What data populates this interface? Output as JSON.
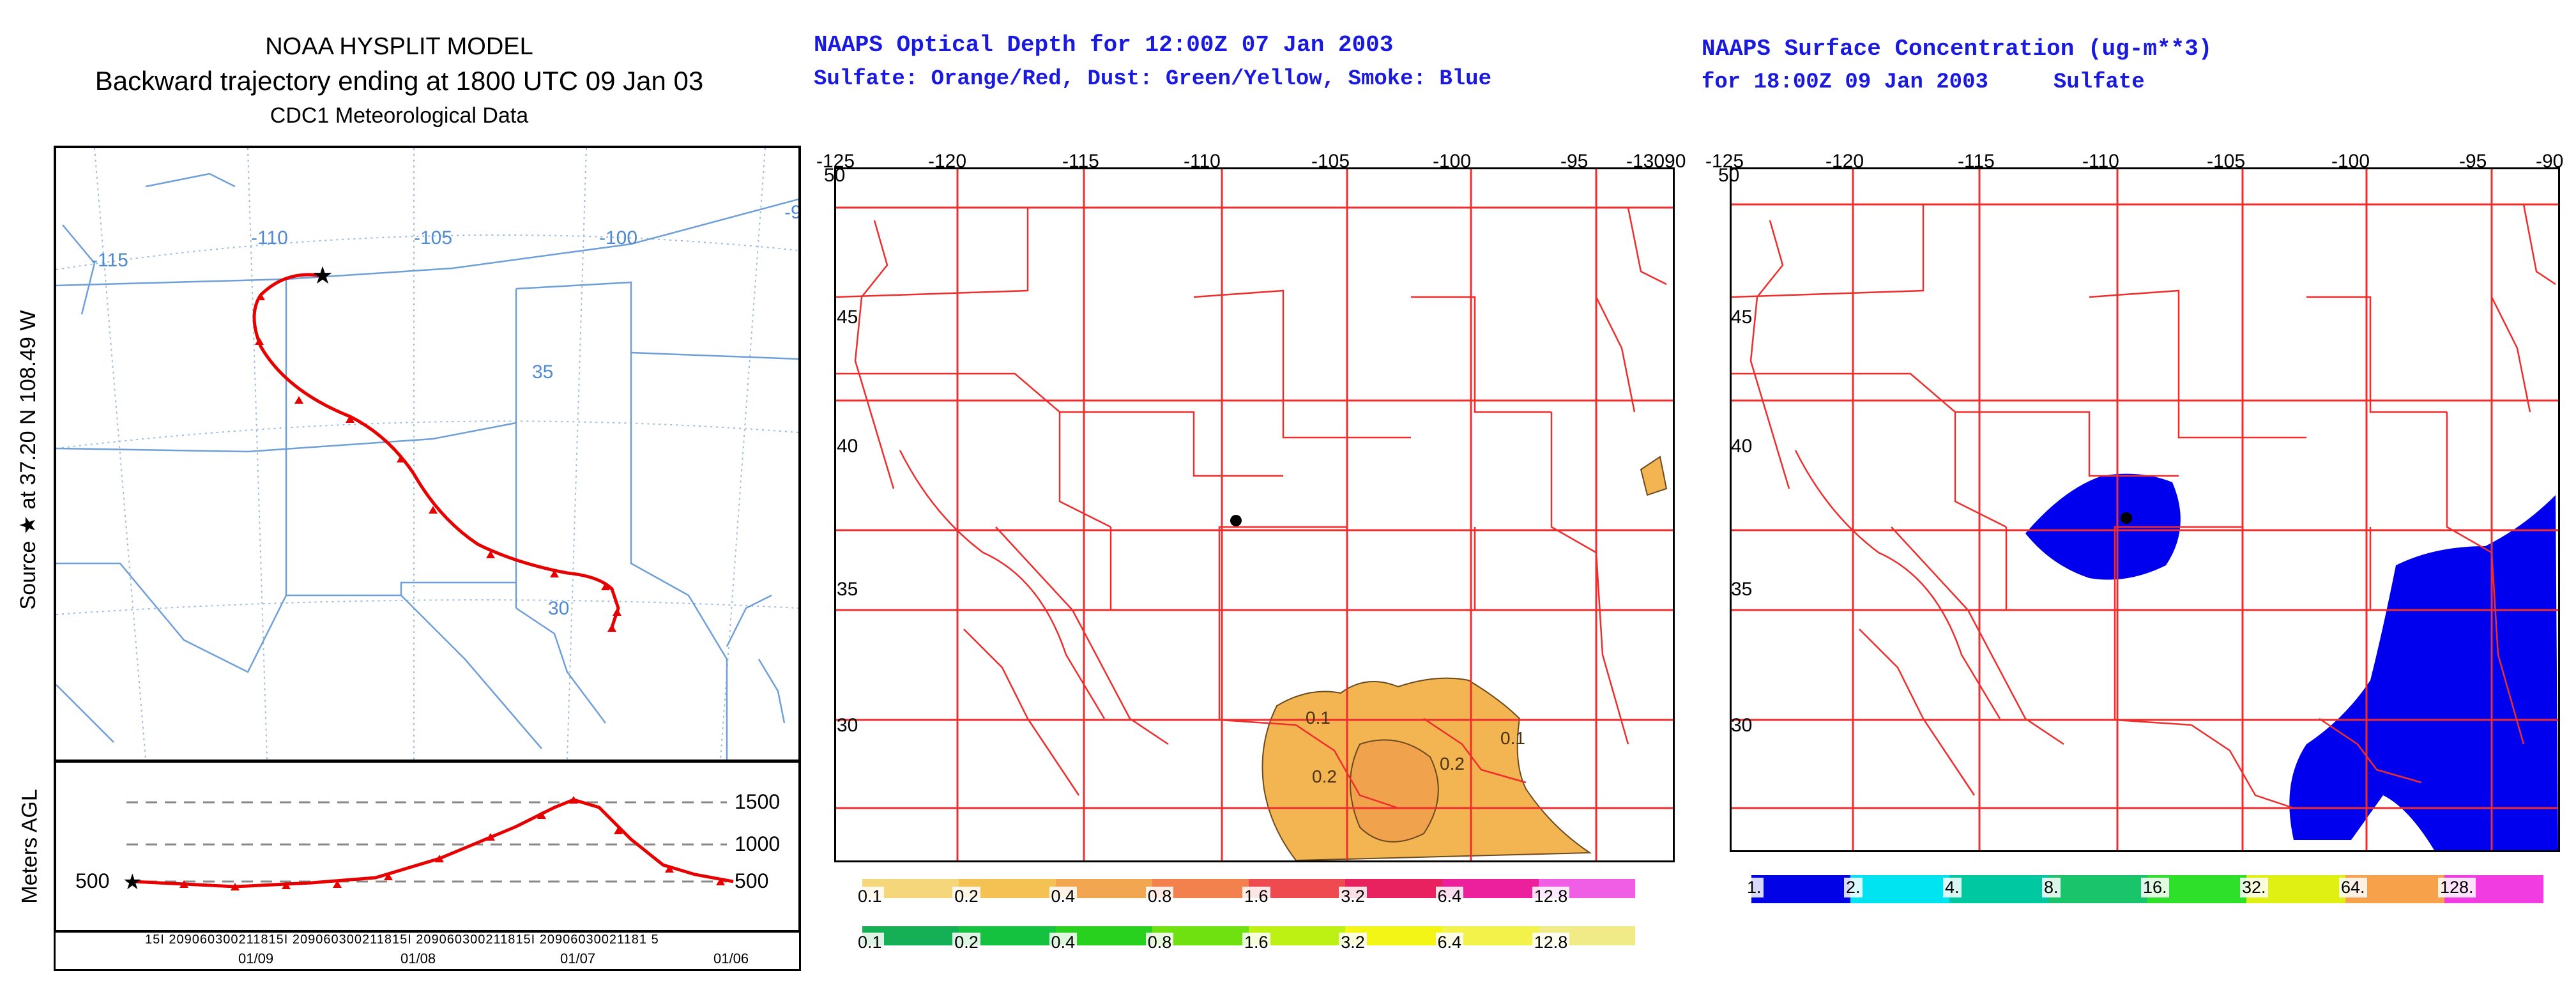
{
  "hysplit": {
    "title1": "NOAA HYSPLIT MODEL",
    "title2": "Backward trajectory ending at 1800 UTC 09 Jan 03",
    "title3": "CDC1 Meteorological Data",
    "ylabel_source": "Source ★  at   37.20 N   108.49 W",
    "lon_labels": [
      "-115",
      "-110",
      "-105",
      "-100",
      "-9"
    ],
    "lat_labels": [
      "35",
      "30"
    ],
    "height_ylabel": "Meters AGL",
    "height_levels": [
      "1500",
      "1000",
      "500"
    ],
    "height_left_label": "500",
    "time_ticks": "15I 209060300211815I 209060300211815I 209060300211815I 20906030021181 5",
    "date_labels": [
      "01/09",
      "01/08",
      "01/07",
      "01/06"
    ],
    "colors": {
      "trajectory": "#e60000",
      "map_lines": "#6f9fd8",
      "grid": "#9bbbe0"
    }
  },
  "optical": {
    "title1": "NAAPS Optical Depth for 12:00Z 07 Jan 2003",
    "title2": "Sulfate: Orange/Red, Dust: Green/Yellow, Smoke: Blue",
    "lon_labels": [
      "-125",
      "-120",
      "-115",
      "-110",
      "-105",
      "-100",
      "-95",
      "-13090"
    ],
    "lat_labels": [
      "50",
      "45",
      "40",
      "35",
      "30"
    ],
    "contour_labels": [
      "0.1",
      "0.2",
      "0.2",
      "0.1"
    ],
    "colorbar1": {
      "labels": [
        "0.1",
        "0.2",
        "0.4",
        "0.8",
        "1.6",
        "3.2",
        "6.4",
        "12.8"
      ],
      "colors": [
        "#f6d67a",
        "#f4c153",
        "#f2a650",
        "#f3814e",
        "#ee4a4f",
        "#e8225e",
        "#ec1f9c",
        "#f05ee6"
      ]
    },
    "colorbar2": {
      "labels": [
        "0.1",
        "0.2",
        "0.4",
        "0.8",
        "1.6",
        "3.2",
        "6.4",
        "12.8"
      ],
      "colors": [
        "#15b056",
        "#14c23f",
        "#28d11e",
        "#6fe110",
        "#bdf013",
        "#f2f515",
        "#f2f24a",
        "#f0eb86"
      ]
    }
  },
  "surface": {
    "title1": "NAAPS Surface Concentration (ug-m**3)",
    "title2": "for 18:00Z 09 Jan 2003     Sulfate",
    "lon_labels": [
      "-125",
      "-120",
      "-115",
      "-110",
      "-105",
      "-100",
      "-95",
      "-90"
    ],
    "lat_labels": [
      "50",
      "45",
      "40",
      "35",
      "30"
    ],
    "colorbar": {
      "labels": [
        "1.",
        "2.",
        "4.",
        "8.",
        "16.",
        "32.",
        "64.",
        "128."
      ],
      "colors": [
        "#0202e6",
        "#00e3f0",
        "#00c8a0",
        "#19c46b",
        "#2ee02a",
        "#dff012",
        "#f7a14a",
        "#f03ce0"
      ]
    }
  },
  "map_colors": {
    "naaps_lines": "#ee2d2d",
    "sulfate_fill": "#0000ee",
    "dust_fill": "#f3b551"
  }
}
